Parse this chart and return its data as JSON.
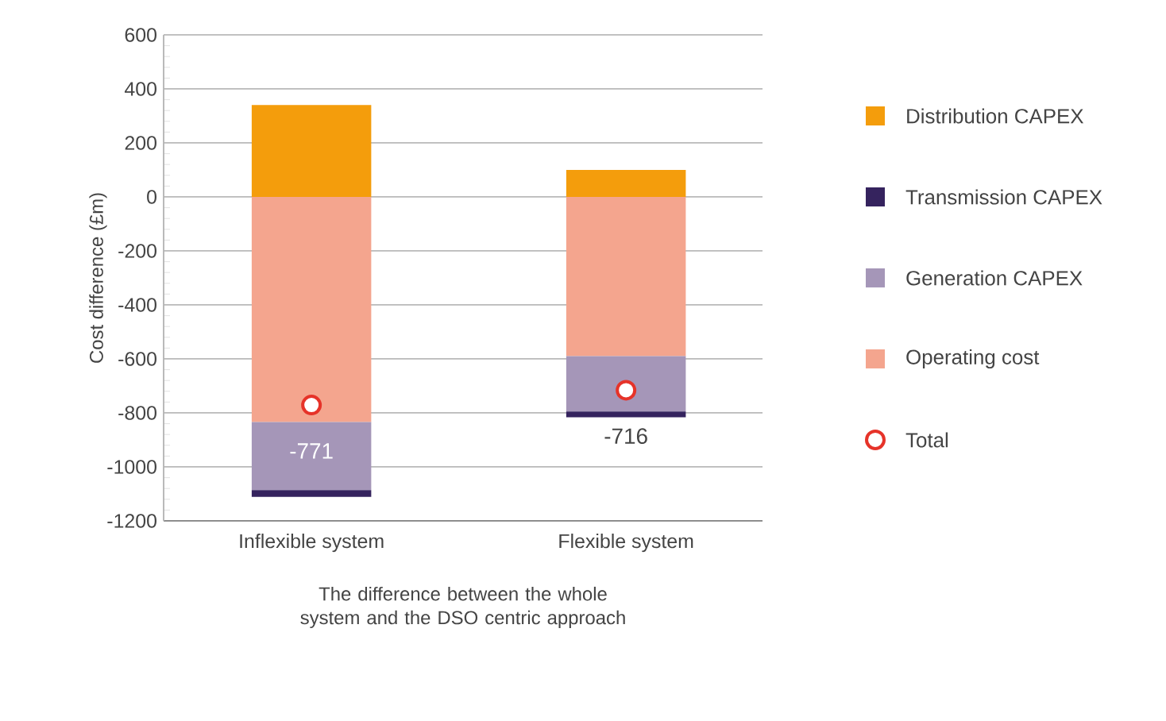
{
  "chart_data": {
    "type": "bar",
    "stacked": true,
    "xlabel": "The difference between the whole system and the DSO centric approach",
    "ylabel": "Cost difference (£m)",
    "categories": [
      "Inflexible system",
      "Flexible system"
    ],
    "series": [
      {
        "name": "Operating cost",
        "color": "#f4a58e",
        "values": [
          -834,
          -590
        ]
      },
      {
        "name": "Generation CAPEX",
        "color": "#a596b8",
        "values": [
          -252,
          -205
        ]
      },
      {
        "name": "Transmission CAPEX",
        "color": "#35235e",
        "values": [
          -25,
          -21
        ]
      },
      {
        "name": "Distribution CAPEX",
        "color": "#f49d0c",
        "values": [
          340,
          100
        ]
      },
      {
        "name": "Total",
        "type": "scatter",
        "marker": "circle",
        "color": "#e63329",
        "x": [
          "Inflexible system",
          "Flexible system"
        ],
        "values": [
          -771,
          -716
        ],
        "value_labels": [
          "-771",
          "-716"
        ]
      }
    ],
    "ylim": [
      -1200,
      600
    ],
    "yticks": [
      -1200,
      -1000,
      -800,
      -600,
      -400,
      -200,
      0,
      200,
      400,
      600
    ],
    "grid": "y",
    "legend": "right"
  }
}
